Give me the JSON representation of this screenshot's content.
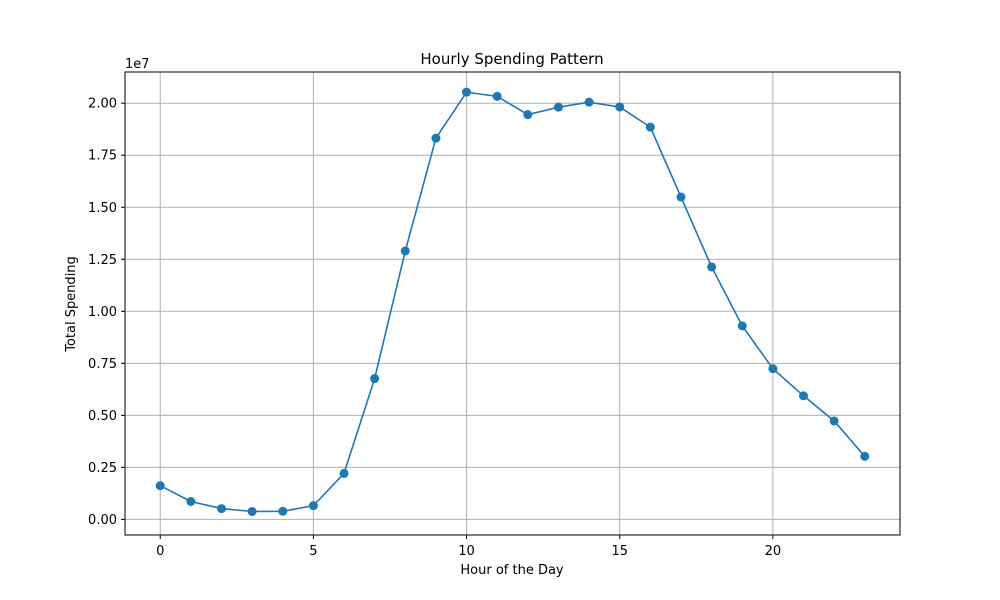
{
  "chart_data": {
    "type": "line",
    "title": "Hourly Spending Pattern",
    "xlabel": "Hour of the Day",
    "ylabel": "Total Spending",
    "y_offset_label": "1e7",
    "y_scale_factor": 10000000,
    "xlim": [
      -1.15,
      24.15
    ],
    "ylim": [
      -0.075,
      2.15
    ],
    "grid": true,
    "marker": "circle",
    "color": "#1f77b4",
    "x_ticks": [
      0,
      5,
      10,
      15,
      20
    ],
    "x_tick_labels": [
      "0",
      "5",
      "10",
      "15",
      "20"
    ],
    "y_ticks": [
      0,
      0.25,
      0.5,
      0.75,
      1.0,
      1.25,
      1.5,
      1.75,
      2.0
    ],
    "y_tick_labels": [
      "0.00",
      "0.25",
      "0.50",
      "0.75",
      "1.00",
      "1.25",
      "1.50",
      "1.75",
      "2.00"
    ],
    "series": [
      {
        "x": [
          0,
          1,
          2,
          3,
          4,
          5,
          6,
          7,
          8,
          9,
          10,
          11,
          12,
          13,
          14,
          15,
          16,
          17,
          18,
          19,
          20,
          21,
          22,
          23
        ],
        "values": [
          0.162,
          0.086,
          0.052,
          0.038,
          0.039,
          0.066,
          0.221,
          0.677,
          1.29,
          1.832,
          2.053,
          2.033,
          1.945,
          1.981,
          2.005,
          1.982,
          1.885,
          1.549,
          1.213,
          0.93,
          0.724,
          0.594,
          0.473,
          0.303
        ]
      }
    ]
  }
}
